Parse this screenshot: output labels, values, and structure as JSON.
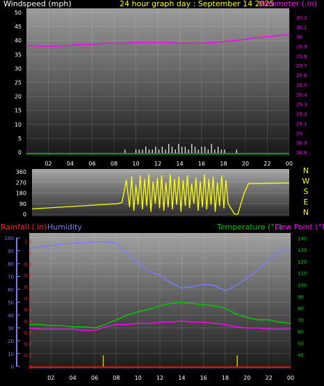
{
  "header": {
    "windspeed_label": "Windspeed (mph)",
    "title": "24 hour graph day : September 14 2025",
    "barometer_label": "Barometer (.in)"
  },
  "lower_header": {
    "rainfall_label": "Rainfall (.in)",
    "humidity_label": "Humidity",
    "temperature_label": "Temperature (°F)",
    "dewpoint_label": "Dew Point (°F)"
  },
  "colors": {
    "windspeed": "#ffffff",
    "barometer": "#ff00ff",
    "winddir": "#ffff00",
    "rain_label": "#ff2222",
    "rain": "#cccc00",
    "humidity": "#7b7bff",
    "temperature": "#00cc00",
    "dewpoint": "#ff00ff",
    "title": "#ffff00",
    "tick": "#ffffff",
    "baseline_green": "#00cc00",
    "baseline_red": "#ff0000"
  },
  "chart_data": [
    {
      "type": "line",
      "name": "wind-barometer",
      "x_ticks": [
        "02",
        "04",
        "06",
        "08",
        "10",
        "12",
        "14",
        "16",
        "18",
        "20",
        "22",
        "00"
      ],
      "x_range_hours": [
        0,
        24
      ],
      "ylim_left": [
        0,
        50
      ],
      "y_ticks_left": [
        "0",
        "5",
        "10",
        "15",
        "20",
        "25",
        "30",
        "35",
        "40",
        "45",
        "50"
      ],
      "ylim_right": [
        28.8,
        30.25
      ],
      "y_ticks_right": [
        "28.8",
        "28.9",
        "29",
        "29.1",
        "29.2",
        "29.3",
        "29.4",
        "29.5",
        "29.6",
        "29.7",
        "29.8",
        "29.9",
        "30",
        "30.1",
        "30.2"
      ],
      "series": [
        {
          "name": "Barometer",
          "axis": "right",
          "x": [
            0,
            1,
            2,
            3,
            4,
            5,
            6,
            7,
            8,
            9,
            10,
            11,
            12,
            13,
            14,
            15,
            16,
            17,
            18,
            19,
            20,
            21,
            22,
            23,
            24
          ],
          "values": [
            29.91,
            29.9,
            29.9,
            29.9,
            29.91,
            29.92,
            29.92,
            29.93,
            29.93,
            29.93,
            29.94,
            29.94,
            29.94,
            29.94,
            29.93,
            29.93,
            29.93,
            29.94,
            29.95,
            29.96,
            29.97,
            29.99,
            30.0,
            30.01,
            30.02
          ]
        },
        {
          "name": "Windspeed",
          "axis": "left",
          "x": [
            9.0,
            9.5,
            10.0,
            10.3,
            10.6,
            10.9,
            11.2,
            11.5,
            11.8,
            12.1,
            12.4,
            12.7,
            13.0,
            13.3,
            13.6,
            13.9,
            14.2,
            14.5,
            14.8,
            15.1,
            15.4,
            15.7,
            16.0,
            16.3,
            16.6,
            16.9,
            17.2,
            17.5,
            17.8,
            18.1,
            18.5,
            19.2
          ],
          "values": [
            1,
            0,
            1,
            1,
            1,
            2,
            1,
            1,
            2,
            1,
            2,
            1,
            3,
            2,
            1,
            3,
            2,
            2,
            1,
            3,
            2,
            1,
            2,
            2,
            1,
            3,
            1,
            2,
            1,
            1,
            0,
            1
          ]
        }
      ]
    },
    {
      "type": "scatter",
      "name": "wind-direction",
      "x_range_hours": [
        0,
        24
      ],
      "ylim": [
        0,
        360
      ],
      "y_ticks": [
        "0",
        "90",
        "180",
        "270",
        "360"
      ],
      "direction_letters": [
        "N",
        "W",
        "S",
        "E",
        "N"
      ],
      "series": [
        {
          "name": "Wind Direction",
          "x": [
            0,
            8.0,
            8.4,
            8.8,
            9.1,
            9.3,
            9.5,
            9.7,
            9.9,
            10.1,
            10.3,
            10.5,
            10.7,
            10.9,
            11.1,
            11.3,
            11.5,
            11.7,
            11.9,
            12.1,
            12.3,
            12.5,
            12.7,
            12.9,
            13.1,
            13.3,
            13.5,
            13.7,
            13.9,
            14.1,
            14.3,
            14.5,
            14.7,
            14.9,
            15.1,
            15.3,
            15.5,
            15.7,
            15.9,
            16.1,
            16.3,
            16.5,
            16.7,
            16.9,
            17.1,
            17.3,
            17.5,
            17.7,
            17.9,
            18.1,
            18.3,
            18.5,
            18.7,
            18.9,
            19.2,
            19.8,
            20.2,
            24
          ],
          "values": [
            45,
            90,
            100,
            290,
            60,
            320,
            30,
            250,
            80,
            330,
            40,
            300,
            70,
            340,
            20,
            280,
            90,
            310,
            50,
            330,
            30,
            270,
            60,
            340,
            40,
            300,
            80,
            320,
            20,
            290,
            70,
            330,
            50,
            260,
            90,
            310,
            30,
            280,
            60,
            340,
            40,
            300,
            80,
            320,
            20,
            270,
            70,
            330,
            50,
            290,
            90,
            60,
            30,
            0,
            0,
            180,
            260,
            265
          ]
        }
      ]
    },
    {
      "type": "line",
      "name": "temperature-humidity-rain",
      "x_ticks": [
        "02",
        "04",
        "06",
        "08",
        "10",
        "12",
        "14",
        "16",
        "18",
        "20",
        "22",
        "00"
      ],
      "x_range_hours": [
        0,
        24
      ],
      "ylim_humidity": [
        0,
        100
      ],
      "y_ticks_humidity": [
        "0",
        "10",
        "20",
        "30",
        "40",
        "50",
        "60",
        "70",
        "80",
        "90",
        "100"
      ],
      "ylim_rain": [
        0,
        1.2
      ],
      "y_ticks_rain": [
        "0",
        "0.1",
        "0.2",
        "0.3",
        "0.4",
        "0.5",
        "0.6",
        "0.7",
        "0.8",
        "0.9",
        "1",
        "1.1"
      ],
      "ylim_temp": [
        30,
        145
      ],
      "y_ticks_temp": [
        "40",
        "50",
        "60",
        "70",
        "80",
        "90",
        "100",
        "110",
        "120",
        "130",
        "140"
      ],
      "series": [
        {
          "name": "Humidity",
          "axis": "humidity",
          "x": [
            0,
            1,
            2,
            3,
            4,
            5,
            6,
            7,
            8,
            9,
            10,
            11,
            12,
            13,
            14,
            15,
            16,
            17,
            18,
            19,
            20,
            21,
            22,
            23,
            24
          ],
          "values": [
            92,
            93,
            94,
            95,
            96,
            96,
            97,
            97,
            96,
            88,
            80,
            74,
            71,
            65,
            61,
            62,
            64,
            63,
            59,
            63,
            69,
            75,
            83,
            90,
            91
          ]
        },
        {
          "name": "Temperature",
          "axis": "temp",
          "x": [
            0,
            1,
            2,
            3,
            4,
            5,
            6,
            7,
            8,
            9,
            10,
            11,
            12,
            13,
            14,
            15,
            16,
            17,
            18,
            19,
            20,
            21,
            22,
            23,
            24
          ],
          "values": [
            66,
            66,
            65,
            65,
            64,
            64,
            63,
            66,
            70,
            74,
            77,
            79,
            82,
            84,
            85,
            84,
            83,
            82,
            80,
            75,
            72,
            70,
            70,
            68,
            67
          ]
        },
        {
          "name": "Dew Point",
          "axis": "temp",
          "x": [
            0,
            1,
            2,
            3,
            4,
            5,
            6,
            7,
            8,
            9,
            10,
            11,
            12,
            13,
            14,
            15,
            16,
            17,
            18,
            19,
            20,
            21,
            22,
            23,
            24
          ],
          "values": [
            63,
            62,
            62,
            62,
            62,
            61,
            61,
            64,
            66,
            66,
            67,
            67,
            68,
            68,
            69,
            68,
            68,
            67,
            66,
            64,
            63,
            63,
            62,
            62,
            62
          ]
        },
        {
          "name": "Rainfall",
          "axis": "rain",
          "x": [
            6.8,
            19.1
          ],
          "values": [
            0.02,
            0.02
          ]
        }
      ]
    }
  ]
}
